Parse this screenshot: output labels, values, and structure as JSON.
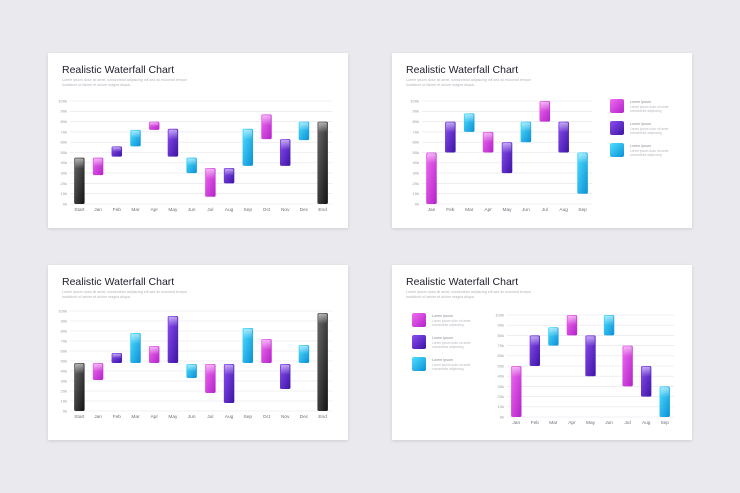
{
  "palette": {
    "magenta": [
      "#f06cf0",
      "#b322c9"
    ],
    "purple": [
      "#8c4ef2",
      "#3c14a4"
    ],
    "blue": [
      "#4ee0ff",
      "#0b8fd6"
    ],
    "black": [
      "#6a6a6a",
      "#121212"
    ]
  },
  "slides": [
    {
      "title": "Realistic Waterfall Chart",
      "subtitle": "Lorem ipsum dolor sit amet, consectetur adipiscing elit sed do eiusmod tempor incididunt ut labore et dolore magna aliqua.",
      "chart_data": {
        "type": "bar",
        "subtype": "waterfall",
        "title": "Realistic Waterfall Chart",
        "ylim": [
          0,
          100
        ],
        "yticks": [
          "0k",
          "10k",
          "20k",
          "30k",
          "40k",
          "50k",
          "60k",
          "70k",
          "80k",
          "90k",
          "100k"
        ],
        "grid": true,
        "categories": [
          "Start",
          "Jan",
          "Feb",
          "Mar",
          "Apr",
          "May",
          "Jun",
          "Jul",
          "Aug",
          "Sep",
          "Oct",
          "Nov",
          "Dec",
          "End"
        ],
        "bars": [
          {
            "low": 0,
            "high": 45,
            "color": "black"
          },
          {
            "low": 28,
            "high": 45,
            "color": "magenta"
          },
          {
            "low": 46,
            "high": 56,
            "color": "purple"
          },
          {
            "low": 56,
            "high": 72,
            "color": "blue"
          },
          {
            "low": 72,
            "high": 80,
            "color": "magenta"
          },
          {
            "low": 46,
            "high": 73,
            "color": "purple"
          },
          {
            "low": 30,
            "high": 45,
            "color": "blue"
          },
          {
            "low": 7,
            "high": 35,
            "color": "magenta"
          },
          {
            "low": 20,
            "high": 35,
            "color": "purple"
          },
          {
            "low": 37,
            "high": 73,
            "color": "blue"
          },
          {
            "low": 63,
            "high": 87,
            "color": "magenta"
          },
          {
            "low": 37,
            "high": 63,
            "color": "purple"
          },
          {
            "low": 62,
            "high": 80,
            "color": "blue"
          },
          {
            "low": 0,
            "high": 80,
            "color": "black"
          }
        ]
      }
    },
    {
      "title": "Realistic Waterfall Chart",
      "subtitle": "Lorem ipsum dolor sit amet, consectetur adipiscing elit sed do eiusmod tempor incididunt ut labore et dolore magna aliqua.",
      "legend": [
        {
          "label": "Lorem Ipsum",
          "desc": "Lorem ipsum dolor sit amet consectetur adipiscing",
          "color": "magenta"
        },
        {
          "label": "Lorem Ipsum",
          "desc": "Lorem ipsum dolor sit amet consectetur adipiscing",
          "color": "purple"
        },
        {
          "label": "Lorem Ipsum",
          "desc": "Lorem ipsum dolor sit amet consectetur adipiscing",
          "color": "blue"
        }
      ],
      "chart_data": {
        "type": "bar",
        "subtype": "waterfall",
        "ylim": [
          0,
          100
        ],
        "yticks": [
          "0k",
          "10k",
          "20k",
          "30k",
          "40k",
          "50k",
          "60k",
          "70k",
          "80k",
          "90k",
          "100k"
        ],
        "grid": true,
        "categories": [
          "Jan",
          "Feb",
          "Mar",
          "Apr",
          "May",
          "Jun",
          "Jul",
          "Aug",
          "Sep"
        ],
        "bars": [
          {
            "low": 0,
            "high": 50,
            "color": "magenta"
          },
          {
            "low": 50,
            "high": 80,
            "color": "purple"
          },
          {
            "low": 70,
            "high": 88,
            "color": "blue"
          },
          {
            "low": 50,
            "high": 70,
            "color": "magenta"
          },
          {
            "low": 30,
            "high": 60,
            "color": "purple"
          },
          {
            "low": 60,
            "high": 80,
            "color": "blue"
          },
          {
            "low": 80,
            "high": 100,
            "color": "magenta"
          },
          {
            "low": 50,
            "high": 80,
            "color": "purple"
          },
          {
            "low": 10,
            "high": 50,
            "color": "blue"
          }
        ]
      }
    },
    {
      "title": "Realistic Waterfall Chart",
      "subtitle": "Lorem ipsum dolor sit amet, consectetur adipiscing elit sed do eiusmod tempor incididunt ut labore et dolore magna aliqua.",
      "chart_data": {
        "type": "bar",
        "subtype": "waterfall",
        "ylim": [
          0,
          100
        ],
        "yticks": [
          "0k",
          "10k",
          "20k",
          "30k",
          "40k",
          "50k",
          "60k",
          "70k",
          "80k",
          "90k",
          "100k"
        ],
        "grid": true,
        "categories": [
          "Start",
          "Jan",
          "Feb",
          "Mar",
          "Apr",
          "May",
          "Jun",
          "Jul",
          "Aug",
          "Sep",
          "Oct",
          "Nov",
          "Dec",
          "End"
        ],
        "bars": [
          {
            "low": 0,
            "high": 48,
            "color": "black"
          },
          {
            "low": 31,
            "high": 48,
            "color": "magenta"
          },
          {
            "low": 48,
            "high": 58,
            "color": "purple"
          },
          {
            "low": 48,
            "high": 78,
            "color": "blue"
          },
          {
            "low": 48,
            "high": 65,
            "color": "magenta"
          },
          {
            "low": 48,
            "high": 95,
            "color": "purple"
          },
          {
            "low": 33,
            "high": 47,
            "color": "blue"
          },
          {
            "low": 18,
            "high": 47,
            "color": "magenta"
          },
          {
            "low": 8,
            "high": 47,
            "color": "purple"
          },
          {
            "low": 48,
            "high": 83,
            "color": "blue"
          },
          {
            "low": 48,
            "high": 72,
            "color": "magenta"
          },
          {
            "low": 22,
            "high": 47,
            "color": "purple"
          },
          {
            "low": 48,
            "high": 66,
            "color": "blue"
          },
          {
            "low": 0,
            "high": 98,
            "color": "black"
          }
        ]
      }
    },
    {
      "title": "Realistic Waterfall Chart",
      "subtitle": "Lorem ipsum dolor sit amet, consectetur adipiscing elit sed do eiusmod tempor incididunt ut labore et dolore magna aliqua.",
      "legend": [
        {
          "label": "Lorem Ipsum",
          "desc": "Lorem ipsum dolor sit amet consectetur adipiscing",
          "color": "magenta"
        },
        {
          "label": "Lorem Ipsum",
          "desc": "Lorem ipsum dolor sit amet consectetur adipiscing",
          "color": "purple"
        },
        {
          "label": "Lorem Ipsum",
          "desc": "Lorem ipsum dolor sit amet consectetur adipiscing",
          "color": "blue"
        }
      ],
      "chart_data": {
        "type": "bar",
        "subtype": "waterfall",
        "ylim": [
          0,
          100
        ],
        "yticks": [
          "0k",
          "10k",
          "20k",
          "30k",
          "40k",
          "50k",
          "60k",
          "70k",
          "80k",
          "90k",
          "100k"
        ],
        "grid": true,
        "categories": [
          "Jan",
          "Feb",
          "Mar",
          "Apr",
          "May",
          "Jun",
          "Jul",
          "Aug",
          "Sep"
        ],
        "bars": [
          {
            "low": 0,
            "high": 50,
            "color": "magenta"
          },
          {
            "low": 50,
            "high": 80,
            "color": "purple"
          },
          {
            "low": 70,
            "high": 88,
            "color": "blue"
          },
          {
            "low": 80,
            "high": 100,
            "color": "magenta"
          },
          {
            "low": 40,
            "high": 80,
            "color": "purple"
          },
          {
            "low": 80,
            "high": 100,
            "color": "blue"
          },
          {
            "low": 30,
            "high": 70,
            "color": "magenta"
          },
          {
            "low": 20,
            "high": 50,
            "color": "purple"
          },
          {
            "low": 0,
            "high": 30,
            "color": "blue"
          }
        ]
      }
    }
  ]
}
